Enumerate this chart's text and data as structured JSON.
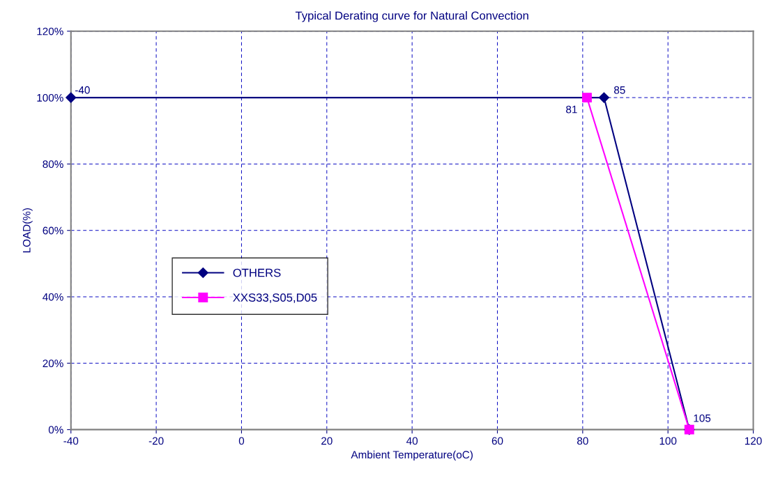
{
  "chart_data": {
    "type": "line",
    "title": "Typical Derating curve for Natural Convection",
    "xlabel": "Ambient Temperature(oC)",
    "ylabel": "LOAD(%)",
    "series": [
      {
        "name": "OTHERS",
        "color": "#000080",
        "x": [
          -40,
          85,
          105
        ],
        "values": [
          100,
          100,
          0
        ],
        "marker": "diamond"
      },
      {
        "name": "XXS33,S05,D05",
        "color": "#ff00ff",
        "x": [
          81,
          105
        ],
        "values": [
          100,
          0
        ],
        "marker": "square"
      }
    ],
    "annotations": [
      {
        "text": "-40",
        "x": -40,
        "y": 100
      },
      {
        "text": "85",
        "x": 85,
        "y": 100
      },
      {
        "text": "81",
        "x": 81,
        "y": 100
      },
      {
        "text": "105",
        "x": 105,
        "y": 0
      }
    ],
    "xlim": [
      -40,
      120
    ],
    "xticks": [
      -40,
      -20,
      0,
      20,
      40,
      60,
      80,
      100,
      120
    ],
    "ylim": [
      0,
      120
    ],
    "yticks": [
      {
        "value": 0,
        "label": "0%"
      },
      {
        "value": 20,
        "label": "20%"
      },
      {
        "value": 40,
        "label": "40%"
      },
      {
        "value": 60,
        "label": "60%"
      },
      {
        "value": 80,
        "label": "80%"
      },
      {
        "value": 100,
        "label": "100%"
      },
      {
        "value": 120,
        "label": "120%"
      }
    ],
    "grid": true,
    "line_style": "solid",
    "legend": "center left"
  }
}
